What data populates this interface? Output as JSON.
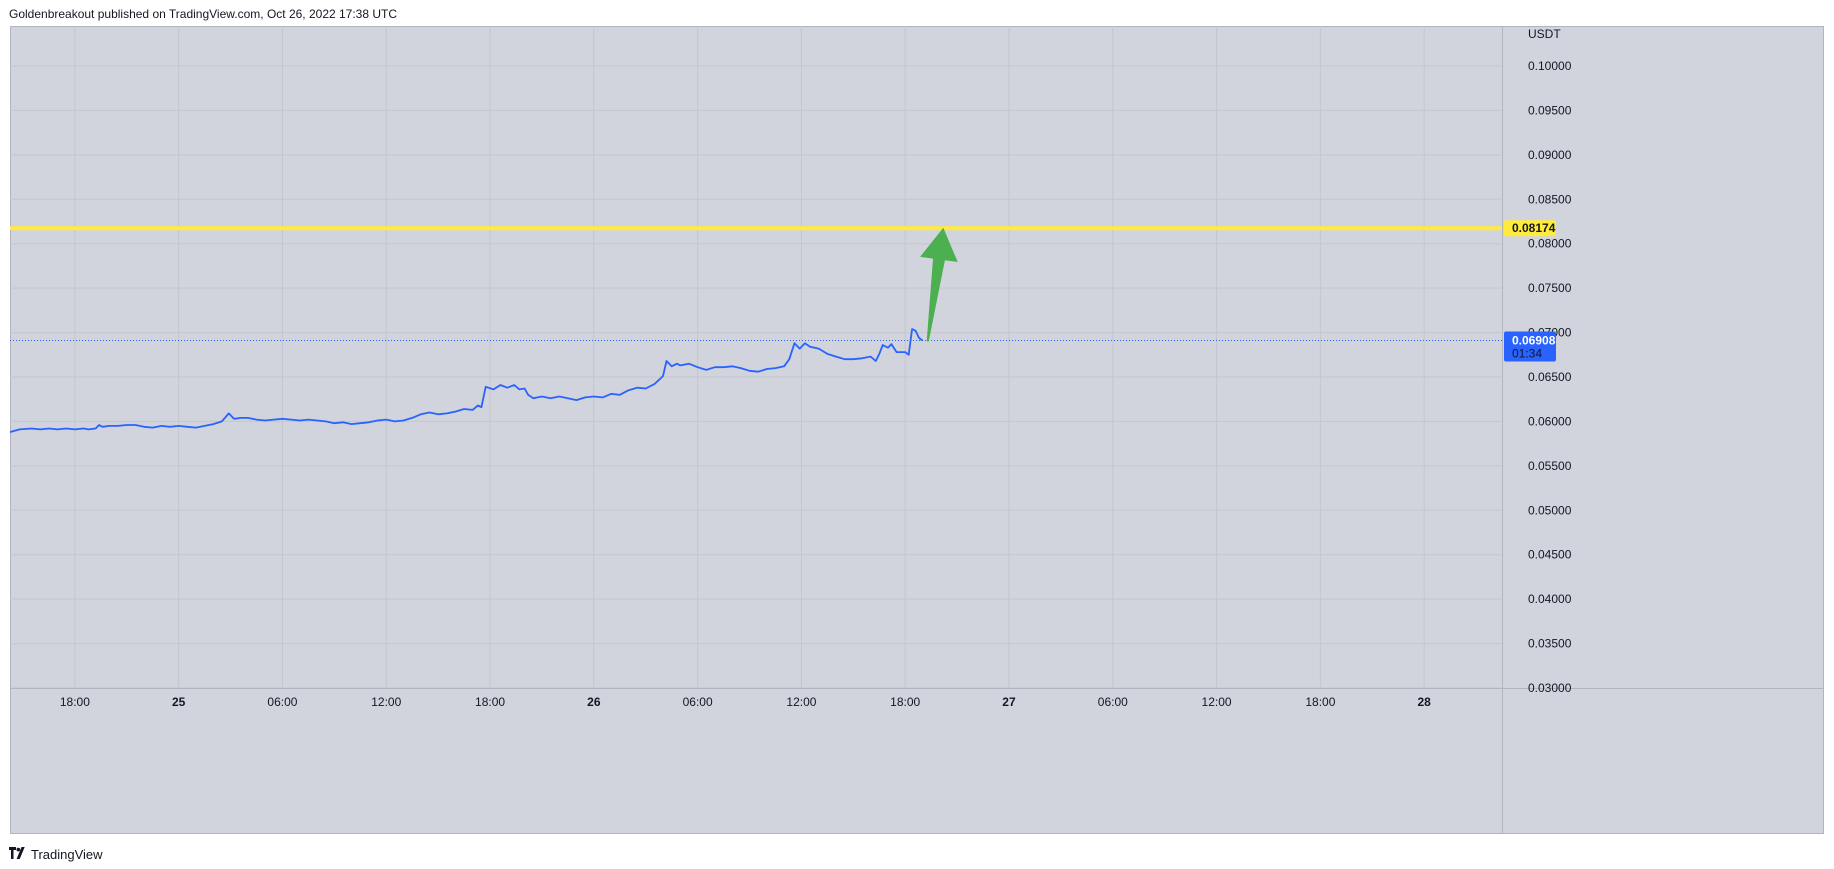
{
  "header": {
    "publisher_line": "Goldenbreakout published on TradingView.com, Oct 26, 2022 17:38 UTC"
  },
  "footer": {
    "brand": "TradingView"
  },
  "colors": {
    "background": "#d1d4dc",
    "price_line": "#2962ff",
    "resistance_line": "#ffeb3b",
    "arrow": "#4caf50",
    "last_price_tag": "#2962ff"
  },
  "chart_data": {
    "type": "line",
    "currency_label": "USDT",
    "y_ticks": [
      "0.10000",
      "0.09500",
      "0.09000",
      "0.08500",
      "0.08000",
      "0.07500",
      "0.07000",
      "0.06500",
      "0.06000",
      "0.05500",
      "0.05000",
      "0.04500",
      "0.04000",
      "0.03500",
      "0.03000"
    ],
    "ylim": [
      0.03,
      0.1045
    ],
    "x_ticks": [
      {
        "label": "18:00",
        "h": 0,
        "bold": false
      },
      {
        "label": "25",
        "h": 6,
        "bold": true
      },
      {
        "label": "06:00",
        "h": 12,
        "bold": false
      },
      {
        "label": "12:00",
        "h": 18,
        "bold": false
      },
      {
        "label": "18:00",
        "h": 24,
        "bold": false
      },
      {
        "label": "26",
        "h": 30,
        "bold": true
      },
      {
        "label": "06:00",
        "h": 36,
        "bold": false
      },
      {
        "label": "12:00",
        "h": 42,
        "bold": false
      },
      {
        "label": "18:00",
        "h": 48,
        "bold": false
      },
      {
        "label": "27",
        "h": 54,
        "bold": true
      },
      {
        "label": "06:00",
        "h": 60,
        "bold": false
      },
      {
        "label": "12:00",
        "h": 66,
        "bold": false
      },
      {
        "label": "18:00",
        "h": 72,
        "bold": false
      },
      {
        "label": "28",
        "h": 78,
        "bold": true
      }
    ],
    "x_range_hours": [
      -3.75,
      82.5
    ],
    "series": [
      {
        "points": [
          [
            -3.75,
            0.0588
          ],
          [
            -3.2,
            0.0591
          ],
          [
            -2.5,
            0.0592
          ],
          [
            -2.0,
            0.0591
          ],
          [
            -1.5,
            0.0592
          ],
          [
            -1.0,
            0.0591
          ],
          [
            -0.5,
            0.0592
          ],
          [
            0.0,
            0.0591
          ],
          [
            0.5,
            0.0592
          ],
          [
            0.8,
            0.0591
          ],
          [
            1.2,
            0.0592
          ],
          [
            1.4,
            0.0596
          ],
          [
            1.6,
            0.0594
          ],
          [
            2.0,
            0.0595
          ],
          [
            2.5,
            0.0595
          ],
          [
            3.0,
            0.0596
          ],
          [
            3.5,
            0.0596
          ],
          [
            4.0,
            0.0594
          ],
          [
            4.5,
            0.0593
          ],
          [
            5.0,
            0.0595
          ],
          [
            5.5,
            0.0594
          ],
          [
            6.0,
            0.0595
          ],
          [
            6.5,
            0.0594
          ],
          [
            7.0,
            0.0593
          ],
          [
            7.5,
            0.0595
          ],
          [
            8.0,
            0.0597
          ],
          [
            8.5,
            0.06
          ],
          [
            8.9,
            0.0609
          ],
          [
            9.2,
            0.0603
          ],
          [
            9.6,
            0.0604
          ],
          [
            10.0,
            0.0604
          ],
          [
            10.5,
            0.0602
          ],
          [
            11.0,
            0.0601
          ],
          [
            11.5,
            0.0602
          ],
          [
            12.0,
            0.0603
          ],
          [
            12.5,
            0.0602
          ],
          [
            13.0,
            0.0601
          ],
          [
            13.5,
            0.0602
          ],
          [
            14.0,
            0.0601
          ],
          [
            14.5,
            0.06
          ],
          [
            15.0,
            0.0598
          ],
          [
            15.5,
            0.0599
          ],
          [
            16.0,
            0.0597
          ],
          [
            16.5,
            0.0598
          ],
          [
            17.0,
            0.0599
          ],
          [
            17.5,
            0.0601
          ],
          [
            18.0,
            0.0602
          ],
          [
            18.5,
            0.06
          ],
          [
            19.0,
            0.0601
          ],
          [
            19.5,
            0.0604
          ],
          [
            20.0,
            0.0608
          ],
          [
            20.5,
            0.061
          ],
          [
            21.0,
            0.0608
          ],
          [
            21.5,
            0.0609
          ],
          [
            22.0,
            0.0611
          ],
          [
            22.5,
            0.0614
          ],
          [
            23.0,
            0.0613
          ],
          [
            23.3,
            0.0618
          ],
          [
            23.5,
            0.0616
          ],
          [
            23.75,
            0.0639
          ],
          [
            24.2,
            0.0636
          ],
          [
            24.6,
            0.0641
          ],
          [
            25.0,
            0.0638
          ],
          [
            25.4,
            0.0641
          ],
          [
            25.7,
            0.0636
          ],
          [
            26.0,
            0.0637
          ],
          [
            26.2,
            0.063
          ],
          [
            26.5,
            0.0626
          ],
          [
            27.0,
            0.0628
          ],
          [
            27.5,
            0.0626
          ],
          [
            28.0,
            0.0628
          ],
          [
            28.5,
            0.0626
          ],
          [
            29.0,
            0.0624
          ],
          [
            29.5,
            0.0627
          ],
          [
            30.0,
            0.0628
          ],
          [
            30.5,
            0.0627
          ],
          [
            31.0,
            0.0631
          ],
          [
            31.5,
            0.063
          ],
          [
            32.0,
            0.0635
          ],
          [
            32.5,
            0.0638
          ],
          [
            33.0,
            0.0637
          ],
          [
            33.5,
            0.0642
          ],
          [
            34.0,
            0.0651
          ],
          [
            34.2,
            0.0668
          ],
          [
            34.5,
            0.0662
          ],
          [
            34.8,
            0.0665
          ],
          [
            35.0,
            0.0663
          ],
          [
            35.5,
            0.0665
          ],
          [
            36.0,
            0.0661
          ],
          [
            36.5,
            0.0658
          ],
          [
            37.0,
            0.0661
          ],
          [
            37.5,
            0.0661
          ],
          [
            38.0,
            0.0662
          ],
          [
            38.5,
            0.066
          ],
          [
            39.0,
            0.0657
          ],
          [
            39.5,
            0.0656
          ],
          [
            40.0,
            0.0659
          ],
          [
            40.5,
            0.066
          ],
          [
            41.0,
            0.0662
          ],
          [
            41.3,
            0.067
          ],
          [
            41.6,
            0.0688
          ],
          [
            41.9,
            0.0682
          ],
          [
            42.2,
            0.0688
          ],
          [
            42.5,
            0.0684
          ],
          [
            43.0,
            0.0682
          ],
          [
            43.5,
            0.0676
          ],
          [
            44.0,
            0.0673
          ],
          [
            44.5,
            0.067
          ],
          [
            45.0,
            0.067
          ],
          [
            45.5,
            0.0671
          ],
          [
            46.0,
            0.0673
          ],
          [
            46.3,
            0.0668
          ],
          [
            46.5,
            0.0676
          ],
          [
            46.7,
            0.0686
          ],
          [
            47.0,
            0.0683
          ],
          [
            47.2,
            0.0687
          ],
          [
            47.5,
            0.0678
          ],
          [
            48.0,
            0.0678
          ],
          [
            48.2,
            0.0675
          ],
          [
            48.4,
            0.0704
          ],
          [
            48.6,
            0.0702
          ],
          [
            48.8,
            0.0694
          ],
          [
            49.0,
            0.0691
          ]
        ]
      }
    ],
    "resistance_level": 0.08174,
    "resistance_label": "0.08174",
    "last_price_label": "0.06908",
    "countdown_label": "01:34",
    "arrow": {
      "from": [
        49.3,
        0.069
      ],
      "to": [
        50.2,
        0.0818
      ]
    }
  }
}
